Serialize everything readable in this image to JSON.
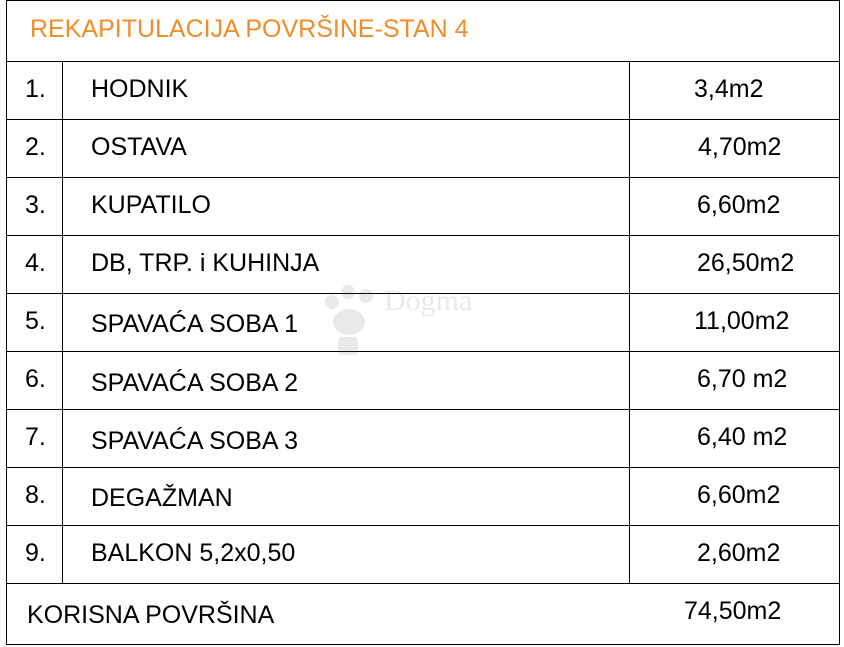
{
  "title": "REKAPITULACIJA POVRŠINE-STAN 4",
  "rows": [
    {
      "num": "1.",
      "name": "HODNIK",
      "area": "3,4m2"
    },
    {
      "num": "2.",
      "name": "OSTAVA",
      "area": "4,70m2"
    },
    {
      "num": "3.",
      "name": "KUPATILO",
      "area": "6,60m2"
    },
    {
      "num": "4.",
      "name": "DB, TRP. i KUHINJA",
      "area": "26,50m2"
    },
    {
      "num": "5.",
      "name": "SPAVAĆA SOBA 1",
      "area": "11,00m2"
    },
    {
      "num": "6.",
      "name": "SPAVAĆA SOBA 2",
      "area": "6,70 m2"
    },
    {
      "num": "7.",
      "name": "SPAVAĆA SOBA 3",
      "area": "6,40 m2"
    },
    {
      "num": "8.",
      "name": "DEGAŽMAN",
      "area": "6,60m2"
    },
    {
      "num": "9.",
      "name": "BALKON 5,2x0,50",
      "area": "2,60m2"
    }
  ],
  "total": {
    "label": "KORISNA POVRŠINA",
    "area": "74,50m2"
  },
  "watermark": {
    "text": "Dogma",
    "icon": "paw-icon"
  },
  "colors": {
    "title": "#f28c28",
    "border": "#000000"
  }
}
